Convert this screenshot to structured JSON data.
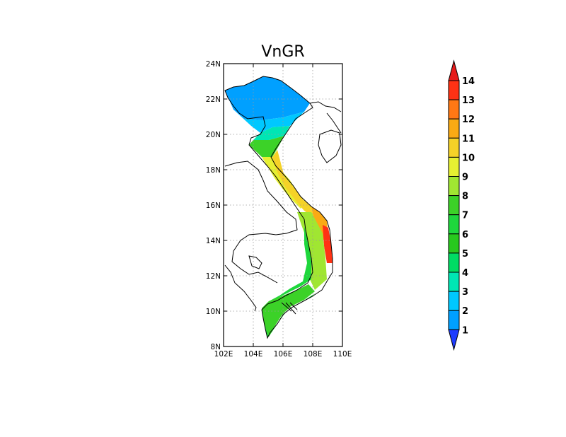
{
  "title": "VnGR",
  "map": {
    "lon_range": [
      102,
      110
    ],
    "lat_range": [
      8,
      24
    ],
    "x_ticks": [
      "102E",
      "104E",
      "106E",
      "108E",
      "110E"
    ],
    "y_ticks": [
      "8N",
      "10N",
      "12N",
      "14N",
      "16N",
      "18N",
      "20N",
      "22N",
      "24N"
    ],
    "grid": "dotted gray at 2-degree intervals"
  },
  "colorbar": {
    "labels": [
      "1",
      "2",
      "3",
      "4",
      "5",
      "6",
      "7",
      "8",
      "9",
      "10",
      "11",
      "12",
      "13",
      "14"
    ],
    "colors": [
      "#1e3cff",
      "#1e6eeb",
      "#00a0ff",
      "#00c8ff",
      "#00e6b4",
      "#00dc64",
      "#28c81e",
      "#1ed73c",
      "#3cd228",
      "#a0e632",
      "#e6f032",
      "#f5d228",
      "#faaa14",
      "#ff7814",
      "#ff3214",
      "#e61a1a"
    ],
    "extends": "both"
  }
}
